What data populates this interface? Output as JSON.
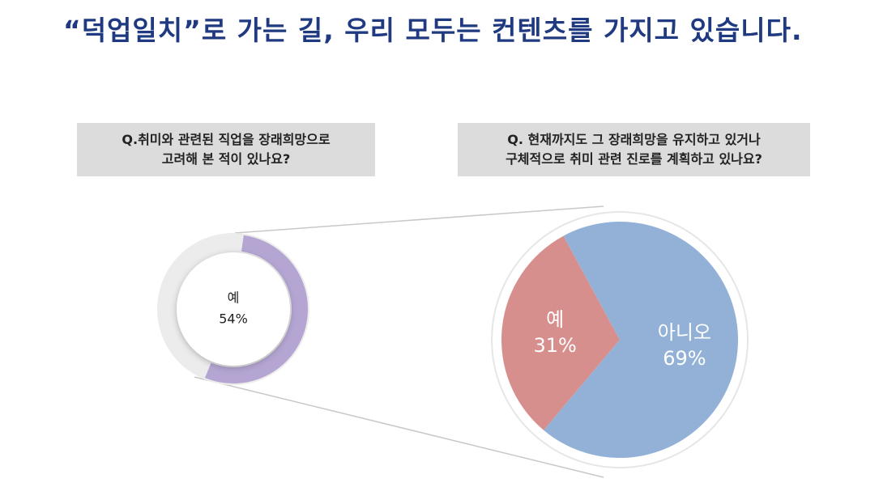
{
  "title": "“덕업일치”로 가는 길, 우리 모두는 컨텐츠를 가지고 있습니다.",
  "chart_data": [
    {
      "type": "donut",
      "question": [
        "Q.취미와 관련된 직업을 장래희망으로",
        "고려해 본 적이 있나요?"
      ],
      "categories": [
        "예"
      ],
      "values": [
        54
      ],
      "value_labels": [
        "54%"
      ],
      "colors": [
        "#b4a5d2"
      ]
    },
    {
      "type": "pie",
      "question": [
        "Q. 현재까지도 그 장래희망을 유지하고 있거나",
        "구체적으로 취미 관련 진로를 계획하고 있나요?"
      ],
      "categories": [
        "예",
        "아니오"
      ],
      "values": [
        31,
        69
      ],
      "value_labels": [
        "31%",
        "69%"
      ],
      "colors": [
        "#d68f8c",
        "#93b1d7"
      ]
    }
  ]
}
